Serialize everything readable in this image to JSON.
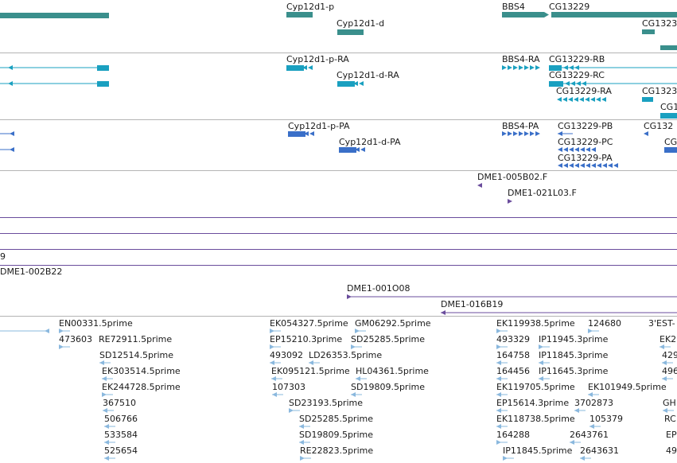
{
  "colors": {
    "gene": "#3a8f8c",
    "transcript": "#1aa0c0",
    "protein": "#3a6fc8",
    "clone": "#6a4c9c",
    "est": "#8ab8de",
    "divider": "#b4b4b4",
    "text": "#1a1a1a"
  },
  "tracks": {
    "genes": [
      "Cyp12d1-p",
      "Cyp12d1-d",
      "BBS4",
      "CG13229",
      "CG1323"
    ],
    "transcripts": [
      "Cyp12d1-p-RA",
      "Cyp12d1-d-RA",
      "BBS4-RA",
      "CG13229-RB",
      "CG13229-RC",
      "CG13229-RA",
      "CG1323",
      "CG1"
    ],
    "proteins": [
      "Cyp12d1-p-PA",
      "Cyp12d1-d-PA",
      "BBS4-PA",
      "CG13229-PB",
      "CG13229-PC",
      "CG13229-PA",
      "CG132",
      "CG"
    ],
    "clones_short": [
      "DME1-005B02.F",
      "DME1-021L03.F"
    ],
    "clones_long": [
      "DME1-002B22",
      "DME1-001O08",
      "DME1-016B19"
    ],
    "clone_fragment": "9",
    "ests": [
      "EN00331.5prime",
      "473603",
      "RE72911.5prime",
      "SD12514.5prime",
      "EK303514.5prime",
      "EK244728.5prime",
      "367510",
      "506766",
      "533584",
      "525654",
      "EK054327.5prime",
      "GM06292.5prime",
      "EP15210.3prime",
      "SD25285.5prime",
      "493092",
      "LD26353.5prime",
      "EK095121.5prime",
      "HL04361.5prime",
      "107303",
      "SD19809.5prime",
      "SD23193.5prime",
      "SD25285.5prime",
      "SD19809.5prime",
      "RE22823.5prime",
      "EK119938.5prime",
      "124680",
      "3'EST-",
      "493329",
      "IP11945.3prime",
      "EK2",
      "164758",
      "IP11845.3prime",
      "429",
      "164456",
      "IP11645.3prime",
      "496",
      "EK119705.5prime",
      "EK101949.5prime",
      "EP15614.3prime",
      "3702873",
      "GH",
      "EK118738.5prime",
      "105379",
      "RC",
      "164288",
      "2643761",
      "EP",
      "IP11845.5prime",
      "2643631",
      "49"
    ]
  }
}
